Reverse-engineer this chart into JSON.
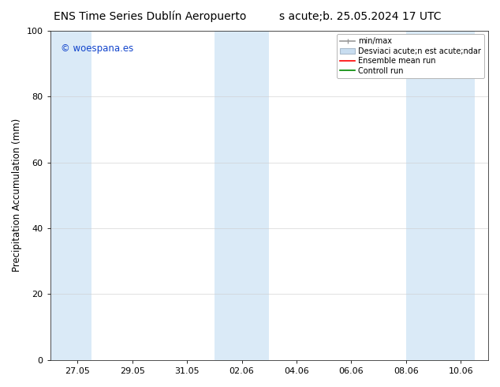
{
  "title_left": "ENS Time Series Dublín Aeropuerto",
  "title_right": "s acute;b. 25.05.2024 17 UTC",
  "ylabel": "Precipitation Accumulation (mm)",
  "ylim": [
    0,
    100
  ],
  "yticks": [
    0,
    20,
    40,
    60,
    80,
    100
  ],
  "x_tick_labels": [
    "27.05",
    "29.05",
    "31.05",
    "02.06",
    "04.06",
    "06.06",
    "08.06",
    "10.06"
  ],
  "watermark": "© woespana.es",
  "background_color": "#ffffff",
  "plot_bg_color": "#ffffff",
  "band_color": "#daeaf7",
  "legend_entries": [
    "min/max",
    "Desviaci acute;n est acute;ndar",
    "Ensemble mean run",
    "Controll run"
  ],
  "legend_colors": [
    "#aaaaaa",
    "#c8ddf0",
    "#ff0000",
    "#008800"
  ],
  "title_fontsize": 10,
  "axis_fontsize": 8.5,
  "tick_fontsize": 8
}
